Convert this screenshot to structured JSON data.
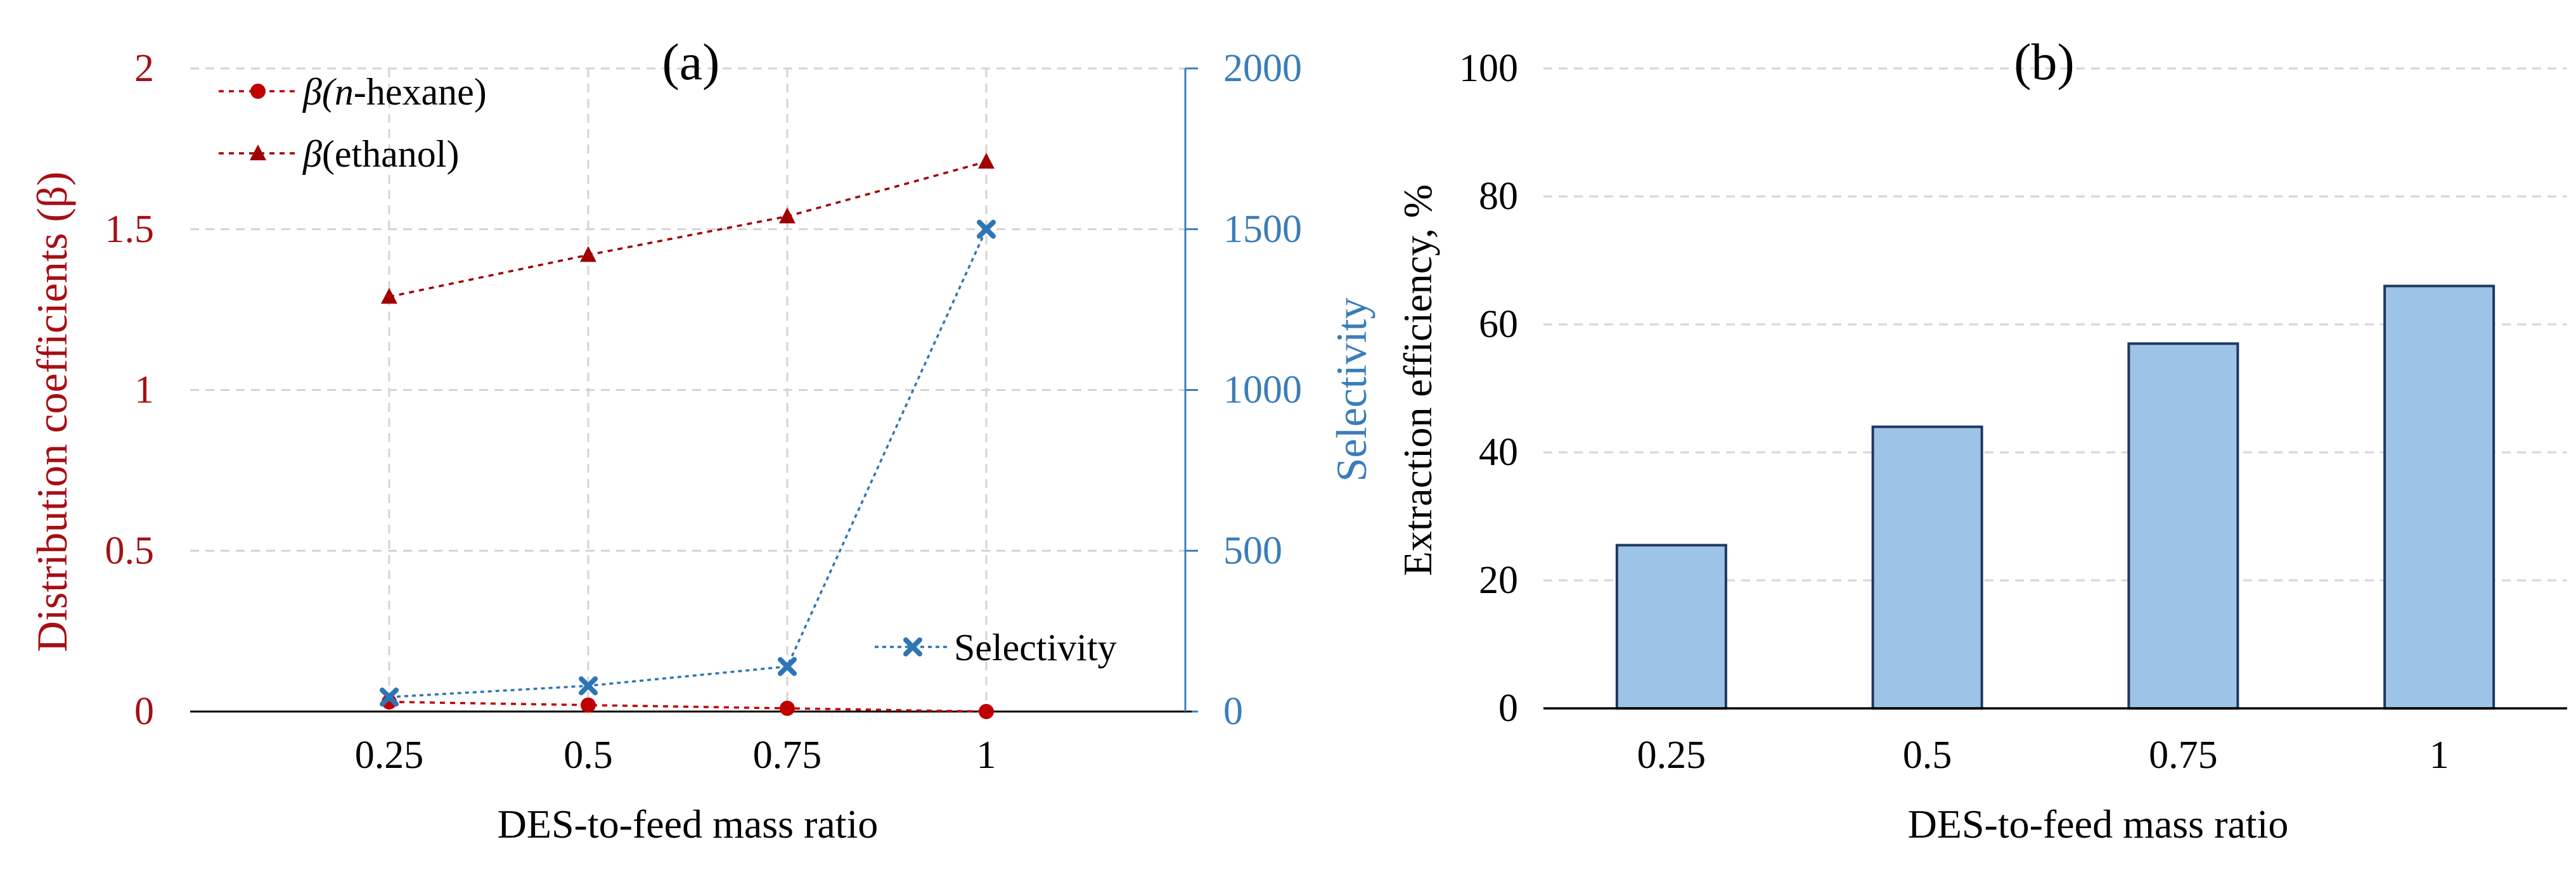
{
  "chart_data": [
    {
      "panel_label": "(a)",
      "type": "line",
      "xlabel": "DES-to-feed mass ratio",
      "ylabel_left": "Distribution coefficients (β)",
      "ylabel_right": "Selectivity",
      "x": [
        0.25,
        0.5,
        0.75,
        1
      ],
      "x_tick_labels": [
        "0.25",
        "0.5",
        "0.75",
        "1"
      ],
      "xlim": [
        0,
        1.25
      ],
      "ylim_left": [
        0,
        2
      ],
      "y_left_ticks": [
        0,
        0.5,
        1,
        1.5,
        2
      ],
      "y_left_tick_labels": [
        "0",
        "0.5",
        "1",
        "1.5",
        "2"
      ],
      "ylim_right": [
        0,
        2000
      ],
      "y_right_ticks": [
        0,
        500,
        1000,
        1500,
        2000
      ],
      "y_right_tick_labels": [
        "0",
        "500",
        "1000",
        "1500",
        "2000"
      ],
      "grid": true,
      "series": [
        {
          "name": "β(n-hexane)",
          "legend_prefix": "β(",
          "legend_italic": "n",
          "legend_suffix": "-hexane)",
          "axis": "left",
          "marker": "circle",
          "color": "#C00000",
          "values": [
            0.03,
            0.02,
            0.01,
            0.0
          ]
        },
        {
          "name": "β(ethanol)",
          "legend_prefix": "β",
          "legend_suffix": "(ethanol)",
          "axis": "left",
          "marker": "triangle",
          "color": "#A00000",
          "values": [
            1.29,
            1.42,
            1.54,
            1.71
          ]
        },
        {
          "name": "Selectivity",
          "legend_text": "Selectivity",
          "axis": "right",
          "marker": "x",
          "color": "#2E75B6",
          "values": [
            45,
            80,
            140,
            1500
          ]
        }
      ],
      "colors": {
        "left_axis": "#A50F15",
        "right_axis": "#3A7DBB"
      }
    },
    {
      "panel_label": "(b)",
      "type": "bar",
      "xlabel": "DES-to-feed mass ratio",
      "ylabel": "Extraction efficiency, %",
      "categories": [
        "0.25",
        "0.5",
        "0.75",
        "1"
      ],
      "values": [
        25.5,
        44,
        57,
        66
      ],
      "ylim": [
        0,
        100
      ],
      "y_ticks": [
        0,
        20,
        40,
        60,
        80,
        100
      ],
      "y_tick_labels": [
        "0",
        "20",
        "40",
        "60",
        "80",
        "100"
      ],
      "grid": true,
      "colors": {
        "bar_fill": "#9DC3E6",
        "bar_stroke": "#1F3864"
      }
    }
  ]
}
